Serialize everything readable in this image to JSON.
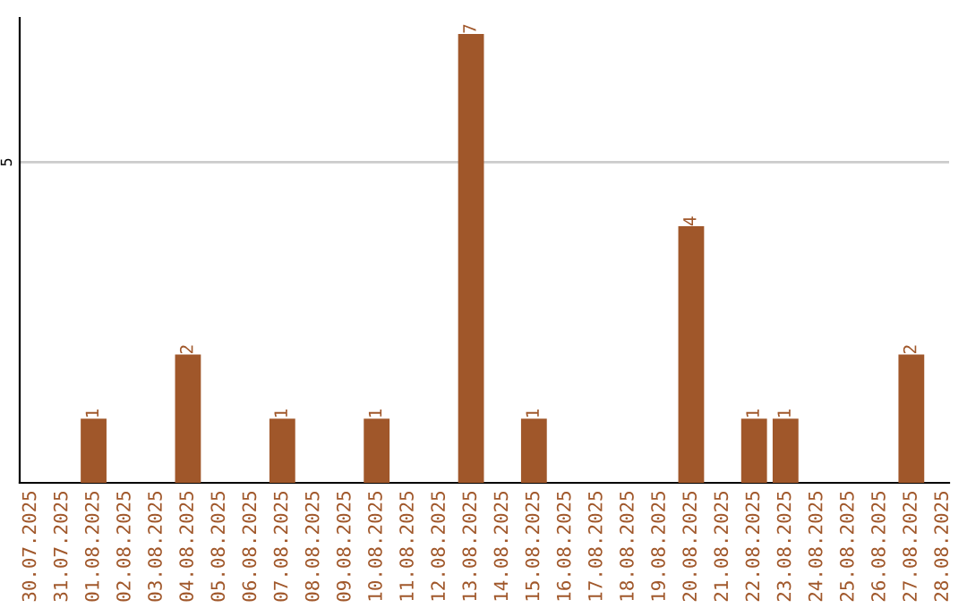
{
  "chart_data": {
    "type": "bar",
    "categories": [
      "30.07.2025",
      "31.07.2025",
      "01.08.2025",
      "02.08.2025",
      "03.08.2025",
      "04.08.2025",
      "05.08.2025",
      "06.08.2025",
      "07.08.2025",
      "08.08.2025",
      "09.08.2025",
      "10.08.2025",
      "11.08.2025",
      "12.08.2025",
      "13.08.2025",
      "14.08.2025",
      "15.08.2025",
      "16.08.2025",
      "17.08.2025",
      "18.08.2025",
      "19.08.2025",
      "20.08.2025",
      "21.08.2025",
      "22.08.2025",
      "23.08.2025",
      "24.08.2025",
      "25.08.2025",
      "26.08.2025",
      "27.08.2025",
      "28.08.2025"
    ],
    "values": [
      0,
      0,
      1,
      0,
      0,
      2,
      0,
      0,
      1,
      0,
      0,
      1,
      0,
      0,
      7,
      0,
      1,
      0,
      0,
      0,
      0,
      4,
      0,
      1,
      1,
      0,
      0,
      0,
      2,
      0
    ],
    "value_labels": [
      null,
      null,
      "1",
      null,
      null,
      "2",
      null,
      null,
      "1",
      null,
      null,
      "1",
      null,
      null,
      "7",
      null,
      "1",
      null,
      null,
      null,
      null,
      "4",
      null,
      "1",
      "1",
      null,
      null,
      null,
      "2",
      null
    ],
    "color": "#a0572a",
    "ylim": [
      0,
      7.25
    ],
    "yticks": [
      5
    ],
    "grid": "y"
  }
}
